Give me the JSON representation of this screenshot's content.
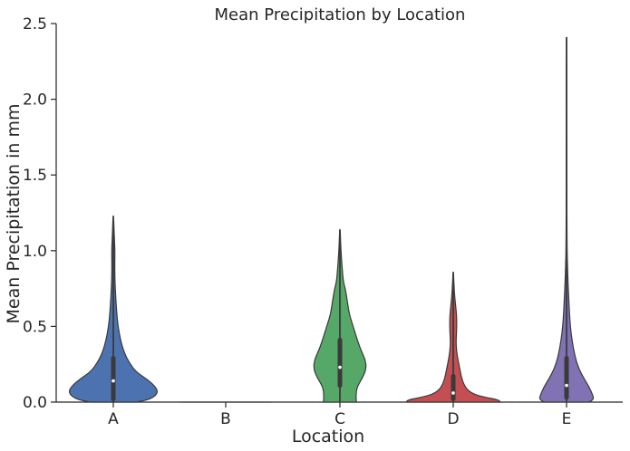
{
  "chart_data": {
    "type": "violin",
    "title": "Mean Precipitation by Location",
    "xlabel": "Location",
    "ylabel": "Mean Precipitation in mm",
    "ylim": [
      0,
      2.5
    ],
    "yticks": [
      0.0,
      0.5,
      1.0,
      1.5,
      2.0,
      2.5
    ],
    "ytick_labels": [
      "0.0",
      "0.5",
      "1.0",
      "1.5",
      "2.0",
      "2.5"
    ],
    "categories": [
      "A",
      "B",
      "C",
      "D",
      "E"
    ],
    "grid": false,
    "legend": "none",
    "series": [
      {
        "category": "A",
        "color": "#4c72b0",
        "min": 0.0,
        "q1": 0.02,
        "median": 0.14,
        "q3": 0.29,
        "max": 1.23,
        "density": [
          [
            0.0,
            0.5
          ],
          [
            0.02,
            0.8
          ],
          [
            0.06,
            0.95
          ],
          [
            0.1,
            0.9
          ],
          [
            0.15,
            0.72
          ],
          [
            0.2,
            0.48
          ],
          [
            0.26,
            0.34
          ],
          [
            0.32,
            0.24
          ],
          [
            0.4,
            0.16
          ],
          [
            0.5,
            0.1
          ],
          [
            0.6,
            0.07
          ],
          [
            0.7,
            0.05
          ],
          [
            0.8,
            0.035
          ],
          [
            0.9,
            0.03
          ],
          [
            1.0,
            0.035
          ],
          [
            1.1,
            0.02
          ],
          [
            1.23,
            0.006
          ]
        ]
      },
      {
        "category": "B",
        "color": "#dd8452",
        "min": 0.0,
        "q1": 0.0,
        "median": 0.0,
        "q3": 0.0,
        "max": 0.0,
        "density": [
          [
            0.0,
            1.0
          ]
        ]
      },
      {
        "category": "C",
        "color": "#55a868",
        "min": 0.0,
        "q1": 0.11,
        "median": 0.23,
        "q3": 0.41,
        "max": 1.14,
        "density": [
          [
            0.0,
            0.35
          ],
          [
            0.04,
            0.34
          ],
          [
            0.1,
            0.36
          ],
          [
            0.16,
            0.48
          ],
          [
            0.22,
            0.56
          ],
          [
            0.28,
            0.54
          ],
          [
            0.34,
            0.45
          ],
          [
            0.4,
            0.38
          ],
          [
            0.46,
            0.32
          ],
          [
            0.52,
            0.26
          ],
          [
            0.58,
            0.2
          ],
          [
            0.66,
            0.16
          ],
          [
            0.74,
            0.12
          ],
          [
            0.8,
            0.07
          ],
          [
            0.88,
            0.05
          ],
          [
            0.96,
            0.03
          ],
          [
            1.05,
            0.015
          ],
          [
            1.14,
            0.006
          ]
        ]
      },
      {
        "category": "D",
        "color": "#c44e52",
        "min": 0.0,
        "q1": 0.02,
        "median": 0.06,
        "q3": 0.17,
        "max": 0.86,
        "density": [
          [
            0.0,
            1.0
          ],
          [
            0.015,
            0.96
          ],
          [
            0.03,
            0.7
          ],
          [
            0.05,
            0.45
          ],
          [
            0.08,
            0.3
          ],
          [
            0.12,
            0.22
          ],
          [
            0.17,
            0.17
          ],
          [
            0.22,
            0.14
          ],
          [
            0.28,
            0.1
          ],
          [
            0.34,
            0.07
          ],
          [
            0.4,
            0.06
          ],
          [
            0.46,
            0.07
          ],
          [
            0.52,
            0.075
          ],
          [
            0.58,
            0.07
          ],
          [
            0.64,
            0.05
          ],
          [
            0.7,
            0.03
          ],
          [
            0.78,
            0.015
          ],
          [
            0.86,
            0.005
          ]
        ]
      },
      {
        "category": "E",
        "color": "#8172b3",
        "min": 0.0,
        "q1": 0.03,
        "median": 0.11,
        "q3": 0.29,
        "max": 2.41,
        "density": [
          [
            0.0,
            0.48
          ],
          [
            0.02,
            0.58
          ],
          [
            0.05,
            0.55
          ],
          [
            0.1,
            0.48
          ],
          [
            0.15,
            0.38
          ],
          [
            0.22,
            0.26
          ],
          [
            0.3,
            0.18
          ],
          [
            0.4,
            0.12
          ],
          [
            0.5,
            0.08
          ],
          [
            0.6,
            0.06
          ],
          [
            0.7,
            0.045
          ],
          [
            0.8,
            0.03
          ],
          [
            0.9,
            0.02
          ],
          [
            1.0,
            0.012
          ],
          [
            1.2,
            0.008
          ],
          [
            1.5,
            0.005
          ],
          [
            1.8,
            0.004
          ],
          [
            2.1,
            0.003
          ],
          [
            2.41,
            0.002
          ]
        ]
      }
    ]
  }
}
